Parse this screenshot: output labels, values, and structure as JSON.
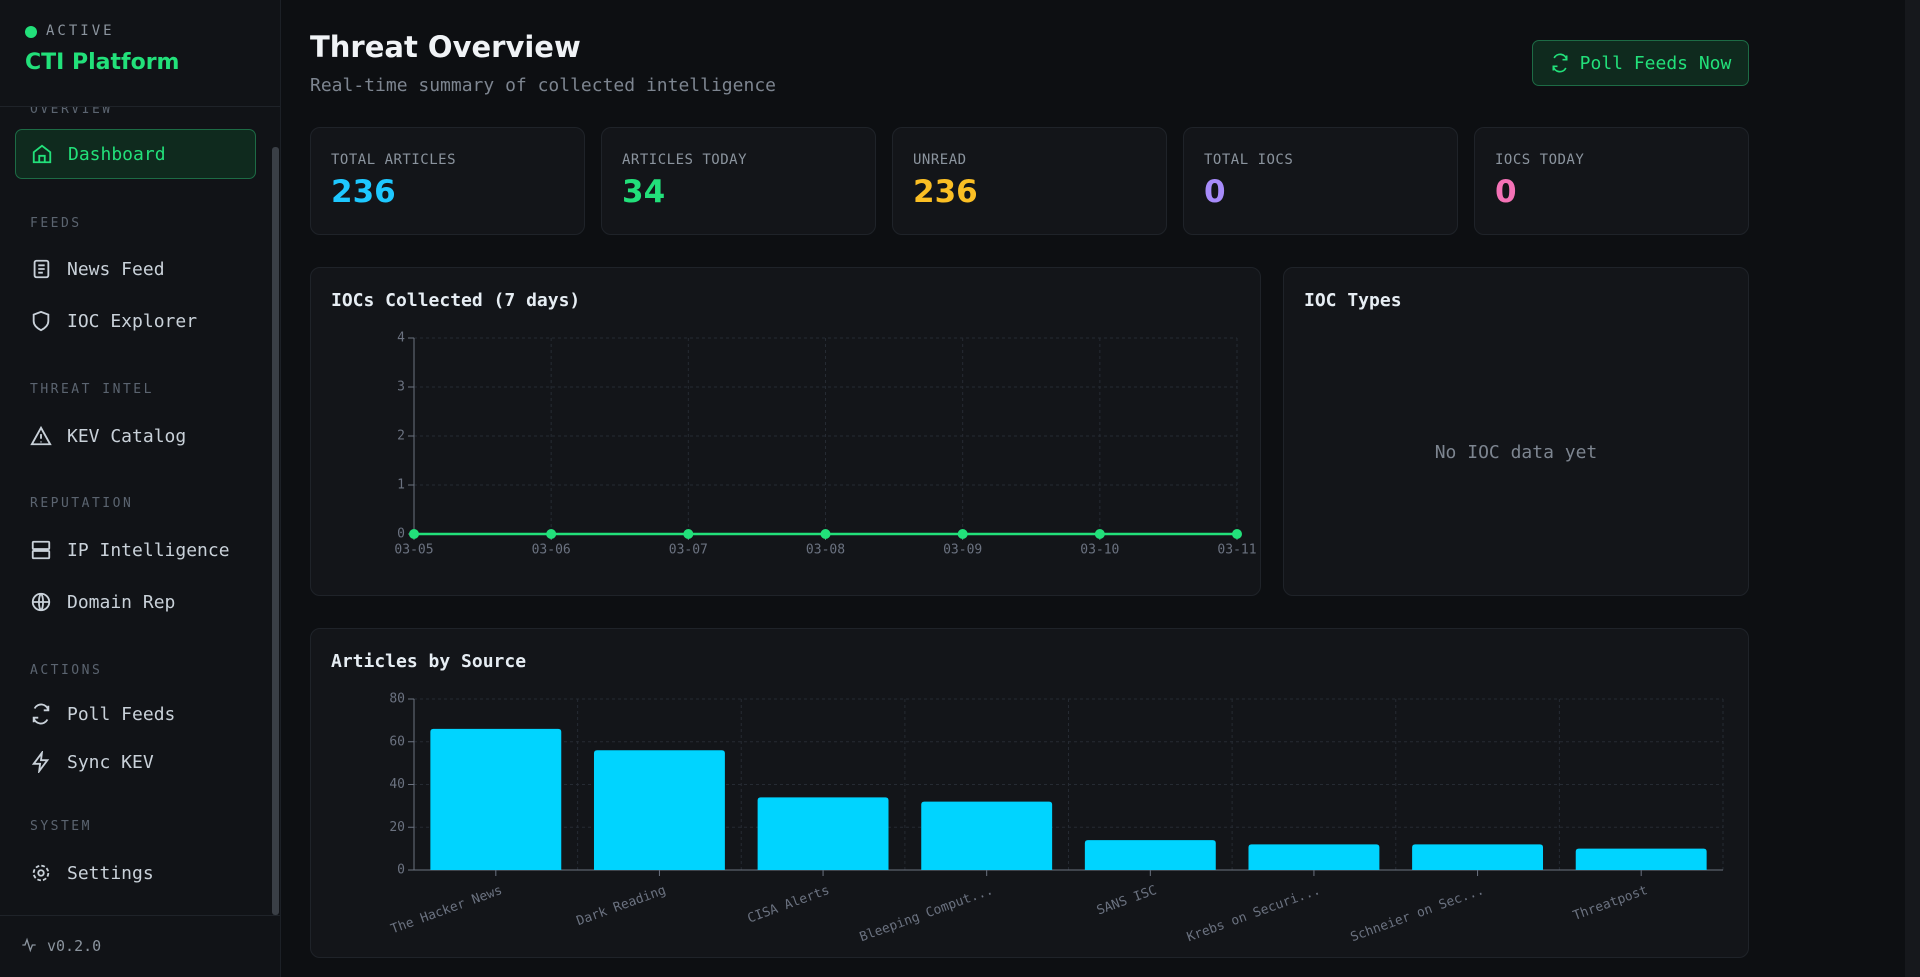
{
  "sidebar": {
    "status": "ACTIVE",
    "brand": "CTI Platform",
    "sections": [
      {
        "label": "OVERVIEW",
        "items": [
          "Dashboard"
        ]
      },
      {
        "label": "FEEDS",
        "items": [
          "News Feed",
          "IOC Explorer"
        ]
      },
      {
        "label": "THREAT INTEL",
        "items": [
          "KEV Catalog"
        ]
      },
      {
        "label": "REPUTATION",
        "items": [
          "IP Intelligence",
          "Domain Rep"
        ]
      },
      {
        "label": "ACTIONS",
        "items": [
          "Poll Feeds",
          "Sync KEV"
        ]
      },
      {
        "label": "SYSTEM",
        "items": [
          "Settings"
        ]
      }
    ],
    "version": "v0.2.0"
  },
  "header": {
    "title": "Threat Overview",
    "subtitle": "Real-time summary of collected intelligence",
    "button": "Poll Feeds Now"
  },
  "stats": [
    {
      "label": "TOTAL ARTICLES",
      "value": 236,
      "color": "#1ec8ff"
    },
    {
      "label": "ARTICLES TODAY",
      "value": 34,
      "color": "#22e07a"
    },
    {
      "label": "UNREAD",
      "value": 236,
      "color": "#fbbf24"
    },
    {
      "label": "TOTAL IOCS",
      "value": 0,
      "color": "#a78bfa"
    },
    {
      "label": "IOCS TODAY",
      "value": 0,
      "color": "#f472b6"
    }
  ],
  "ioc_chart": {
    "type": "line",
    "title": "IOCs Collected (7 days)",
    "categories": [
      "03-05",
      "03-06",
      "03-07",
      "03-08",
      "03-09",
      "03-10",
      "03-11"
    ],
    "values": [
      0,
      0,
      0,
      0,
      0,
      0,
      0
    ],
    "color": "#22e07a",
    "ylim": [
      0,
      4
    ],
    "yticks": [
      0,
      1,
      2,
      3,
      4
    ],
    "grid": true
  },
  "ioc_types": {
    "title": "IOC Types",
    "empty_message": "No IOC data yet"
  },
  "source_chart": {
    "type": "bar",
    "title": "Articles by Source",
    "categories": [
      "The Hacker News",
      "Dark Reading",
      "CISA Alerts",
      "Bleeping Comput...",
      "SANS ISC",
      "Krebs on Securi...",
      "Schneier on Sec...",
      "Threatpost"
    ],
    "values": [
      66,
      56,
      34,
      32,
      14,
      12,
      12,
      10
    ],
    "color": "#00d4ff",
    "ylim": [
      0,
      80
    ],
    "yticks": [
      0,
      20,
      40,
      60,
      80
    ],
    "grid": true
  }
}
